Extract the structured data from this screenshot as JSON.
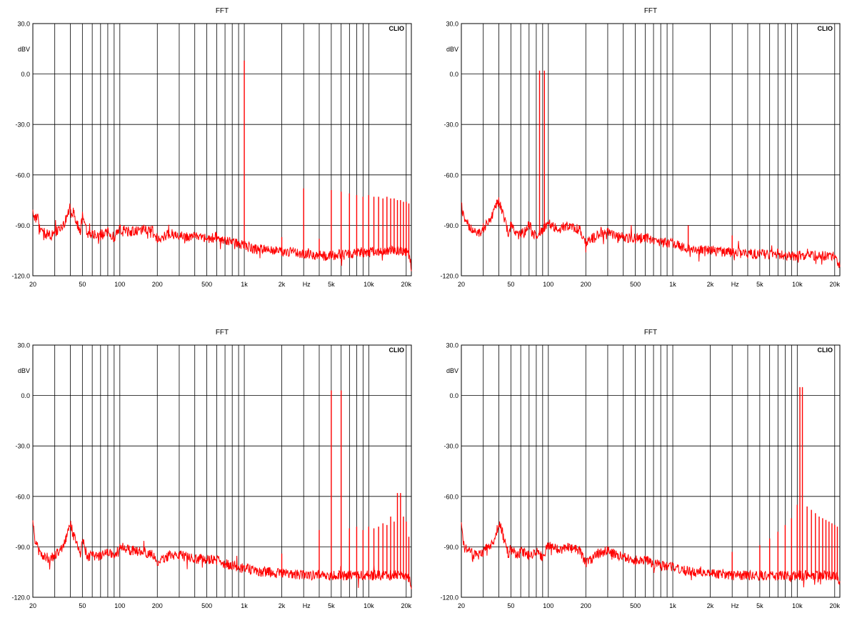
{
  "chart_data": [
    {
      "type": "line",
      "title": "FFT",
      "brand": "CLIO",
      "ylabel": "dBV",
      "xunit": "Hz",
      "xscale": "log",
      "xlim": [
        20,
        22000
      ],
      "ylim": [
        -120,
        30
      ],
      "yticks": [
        30,
        0,
        -30,
        -60,
        -90,
        -120
      ],
      "ytick_labels": [
        "30.0",
        "0.0",
        "-30.0",
        "-60.0",
        "-90.0",
        "-120.0"
      ],
      "xticks": [
        20,
        50,
        100,
        200,
        500,
        1000,
        2000,
        5000,
        10000,
        20000
      ],
      "xtick_labels": [
        "20",
        "50",
        "100",
        "200",
        "500",
        "1k",
        "2k",
        "5k",
        "10k",
        "20k"
      ],
      "grid": true,
      "series_color": "#ff0000",
      "series": [
        {
          "x": [
            20,
            21,
            22,
            23,
            25,
            28,
            30,
            33,
            36,
            38,
            40,
            42,
            45,
            48,
            50,
            55,
            60,
            70,
            80,
            90,
            100,
            120,
            150,
            180,
            200,
            250,
            300,
            350,
            400,
            500,
            600,
            700,
            800,
            900,
            1000,
            1200,
            1500,
            2000,
            2500,
            3000,
            4000,
            5000,
            6000,
            7000,
            8000,
            10000,
            12000,
            15000,
            18000,
            20000,
            21000,
            22000
          ],
          "y": [
            -82,
            -86,
            -84,
            -92,
            -95,
            -96,
            -94,
            -92,
            -88,
            -84,
            -79,
            -82,
            -88,
            -94,
            -84,
            -96,
            -95,
            -96,
            -94,
            -97,
            -92,
            -94,
            -93,
            -92,
            -98,
            -95,
            -96,
            -97,
            -95,
            -98,
            -97,
            -99,
            -100,
            -101,
            -102,
            -104,
            -104,
            -106,
            -106,
            -107,
            -108,
            -108,
            -107,
            -107,
            -106,
            -106,
            -106,
            -105,
            -105,
            -106,
            -108,
            -115
          ]
        },
        {
          "type": "spikes",
          "x": [
            1000,
            2000,
            3000,
            4000,
            5000,
            6000,
            7000,
            8000,
            9000,
            10000,
            11000,
            12000,
            13000,
            14000,
            15000,
            16000,
            17000,
            18000,
            19000,
            20000,
            21000
          ],
          "y": [
            8,
            -97,
            -68,
            -98,
            -69,
            -70,
            -71,
            -72,
            -73,
            -72,
            -73,
            -73,
            -74,
            -73,
            -74,
            -74,
            -75,
            -75,
            -76,
            -76,
            -77
          ]
        }
      ]
    },
    {
      "type": "line",
      "title": "FFT",
      "brand": "CLIO",
      "ylabel": "dBV",
      "xunit": "Hz",
      "xscale": "log",
      "xlim": [
        20,
        22000
      ],
      "ylim": [
        -120,
        30
      ],
      "yticks": [
        30,
        0,
        -30,
        -60,
        -90,
        -120
      ],
      "ytick_labels": [
        "30.0",
        "0.0",
        "-30.0",
        "-60.0",
        "-90.0",
        "-120.0"
      ],
      "xticks": [
        20,
        50,
        100,
        200,
        500,
        1000,
        2000,
        5000,
        10000,
        20000
      ],
      "xtick_labels": [
        "20",
        "50",
        "100",
        "200",
        "500",
        "1k",
        "2k",
        "5k",
        "10k",
        "20k"
      ],
      "grid": true,
      "series_color": "#ff0000",
      "series": [
        {
          "x": [
            20,
            21,
            22,
            23,
            25,
            28,
            30,
            33,
            36,
            38,
            40,
            42,
            45,
            48,
            50,
            55,
            60,
            65,
            70,
            75,
            80,
            90,
            100,
            120,
            150,
            180,
            200,
            250,
            300,
            350,
            400,
            500,
            600,
            700,
            800,
            1000,
            1200,
            1500,
            2000,
            2500,
            3000,
            4000,
            5000,
            6000,
            7000,
            8000,
            10000,
            12000,
            15000,
            18000,
            20000,
            21000,
            22000
          ],
          "y": [
            -78,
            -86,
            -88,
            -91,
            -94,
            -95,
            -92,
            -88,
            -84,
            -78,
            -76,
            -80,
            -88,
            -95,
            -90,
            -96,
            -95,
            -94,
            -88,
            -96,
            -95,
            -93,
            -89,
            -92,
            -90,
            -93,
            -101,
            -95,
            -94,
            -97,
            -97,
            -98,
            -97,
            -99,
            -100,
            -101,
            -103,
            -104,
            -105,
            -106,
            -106,
            -107,
            -107,
            -107,
            -107,
            -108,
            -108,
            -108,
            -108,
            -108,
            -109,
            -111,
            -114
          ]
        },
        {
          "type": "spikes",
          "x": [
            85,
            93,
            1330,
            3000
          ],
          "y": [
            2,
            2,
            -90,
            -96
          ]
        }
      ]
    },
    {
      "type": "line",
      "title": "FFT",
      "brand": "CLIO",
      "ylabel": "dBV",
      "xunit": "Hz",
      "xscale": "log",
      "xlim": [
        20,
        22000
      ],
      "ylim": [
        -120,
        30
      ],
      "yticks": [
        30,
        0,
        -30,
        -60,
        -90,
        -120
      ],
      "ytick_labels": [
        "30.0",
        "0.0",
        "-30.0",
        "-60.0",
        "-90.0",
        "-120.0"
      ],
      "xticks": [
        20,
        50,
        100,
        200,
        500,
        1000,
        2000,
        5000,
        10000,
        20000
      ],
      "xtick_labels": [
        "20",
        "50",
        "100",
        "200",
        "500",
        "1k",
        "2k",
        "5k",
        "10k",
        "20k"
      ],
      "grid": true,
      "series_color": "#ff0000",
      "series": [
        {
          "x": [
            20,
            21,
            22,
            23,
            25,
            28,
            30,
            33,
            36,
            38,
            40,
            42,
            45,
            48,
            50,
            55,
            60,
            70,
            80,
            90,
            100,
            120,
            150,
            180,
            200,
            250,
            300,
            350,
            400,
            500,
            600,
            700,
            800,
            1000,
            1200,
            1500,
            2000,
            2500,
            3000,
            4000,
            5000,
            6000,
            7000,
            8000,
            10000,
            12000,
            15000,
            18000,
            20000,
            21000,
            22000
          ],
          "y": [
            -76,
            -88,
            -92,
            -94,
            -96,
            -97,
            -95,
            -92,
            -88,
            -82,
            -75,
            -82,
            -88,
            -95,
            -86,
            -96,
            -95,
            -96,
            -93,
            -96,
            -90,
            -92,
            -93,
            -94,
            -100,
            -95,
            -95,
            -96,
            -97,
            -98,
            -98,
            -100,
            -101,
            -103,
            -104,
            -105,
            -106,
            -106,
            -107,
            -107,
            -107,
            -107,
            -107,
            -107,
            -107,
            -107,
            -107,
            -107,
            -107,
            -109,
            -114
          ]
        },
        {
          "type": "spikes",
          "x": [
            2000,
            4000,
            5000,
            6000,
            7000,
            8000,
            9000,
            10000,
            11000,
            12000,
            13000,
            14000,
            15000,
            16000,
            17000,
            18000,
            19000,
            20000,
            21000
          ],
          "y": [
            -94,
            -80,
            3,
            3,
            -79,
            -78,
            -80,
            -78,
            -79,
            -78,
            -76,
            -77,
            -72,
            -75,
            -58,
            -58,
            -72,
            -75,
            -84
          ]
        }
      ]
    },
    {
      "type": "line",
      "title": "FFT",
      "brand": "CLIO",
      "ylabel": "dBV",
      "xunit": "Hz",
      "xscale": "log",
      "xlim": [
        20,
        22000
      ],
      "ylim": [
        -120,
        30
      ],
      "yticks": [
        30,
        0,
        -30,
        -60,
        -90,
        -120
      ],
      "ytick_labels": [
        "30.0",
        "0.0",
        "-30.0",
        "-60.0",
        "-90.0",
        "-120.0"
      ],
      "xticks": [
        20,
        50,
        100,
        200,
        500,
        1000,
        2000,
        5000,
        10000,
        20000
      ],
      "xtick_labels": [
        "20",
        "50",
        "100",
        "200",
        "500",
        "1k",
        "2k",
        "5k",
        "10k",
        "20k"
      ],
      "grid": true,
      "series_color": "#ff0000",
      "series": [
        {
          "x": [
            20,
            21,
            22,
            23,
            25,
            28,
            30,
            33,
            36,
            38,
            40,
            42,
            45,
            48,
            50,
            55,
            60,
            70,
            80,
            90,
            100,
            120,
            150,
            180,
            200,
            250,
            300,
            350,
            400,
            500,
            600,
            700,
            800,
            1000,
            1200,
            1500,
            2000,
            2500,
            3000,
            4000,
            5000,
            6000,
            7000,
            8000,
            10000,
            12000,
            15000,
            18000,
            20000,
            21000,
            22000
          ],
          "y": [
            -78,
            -90,
            -92,
            -93,
            -94,
            -95,
            -93,
            -90,
            -87,
            -82,
            -76,
            -80,
            -88,
            -95,
            -88,
            -96,
            -93,
            -95,
            -93,
            -96,
            -89,
            -92,
            -90,
            -92,
            -100,
            -94,
            -92,
            -95,
            -96,
            -98,
            -98,
            -100,
            -101,
            -102,
            -104,
            -105,
            -106,
            -106,
            -107,
            -107,
            -107,
            -107,
            -107,
            -107,
            -107,
            -107,
            -107,
            -107,
            -107,
            -108,
            -113
          ]
        },
        {
          "type": "spikes",
          "x": [
            3000,
            5000,
            6000,
            7000,
            8000,
            9000,
            10000,
            10500,
            11000,
            12000,
            13000,
            14000,
            15000,
            16000,
            17000,
            18000,
            19000,
            20000,
            21000
          ],
          "y": [
            -93,
            -89,
            -85,
            -81,
            -77,
            -73,
            -65,
            5,
            5,
            -66,
            -68,
            -70,
            -72,
            -73,
            -74,
            -75,
            -76,
            -77,
            -78
          ]
        }
      ]
    }
  ]
}
